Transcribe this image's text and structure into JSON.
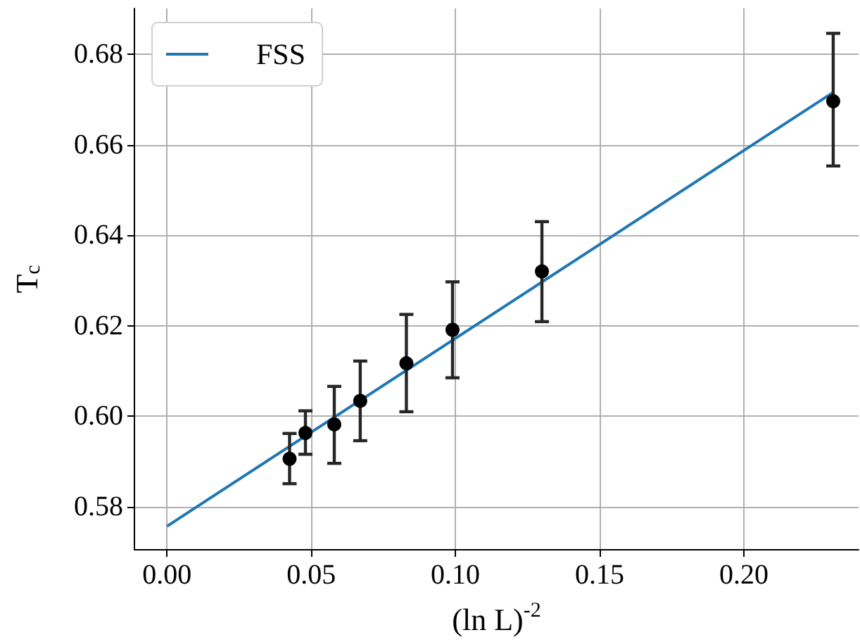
{
  "chart_data": {
    "type": "scatter",
    "xlabel": "(ln L)$^{-2}$",
    "ylabel": "T$_{c}$",
    "xlim": [
      -0.0113,
      0.2398
    ],
    "ylim": [
      0.5705,
      0.6901
    ],
    "xticks": [
      {
        "value": 0,
        "label": "0.00"
      },
      {
        "value": 0.05,
        "label": "0.05"
      },
      {
        "value": 0.1,
        "label": "0.10"
      },
      {
        "value": 0.15,
        "label": "0.15"
      },
      {
        "value": 0.2,
        "label": "0.20"
      }
    ],
    "yticks": [
      {
        "value": 0.58,
        "label": "0.58"
      },
      {
        "value": 0.6,
        "label": "0.60"
      },
      {
        "value": 0.62,
        "label": "0.62"
      },
      {
        "value": 0.64,
        "label": "0.64"
      },
      {
        "value": 0.66,
        "label": "0.66"
      },
      {
        "value": 0.68,
        "label": "0.68"
      }
    ],
    "grid": true,
    "legend": "top left",
    "marker": "circle",
    "series": [
      {
        "type": "scatter",
        "color": "#000000",
        "x": [
          0.0425,
          0.048,
          0.058,
          0.067,
          0.083,
          0.099,
          0.13,
          0.231
        ],
        "values": [
          0.5906,
          0.5963,
          0.5982,
          0.6034,
          0.6117,
          0.6191,
          0.632,
          0.6696
        ],
        "errors": [
          [
            0.5851,
            0.5962
          ],
          [
            0.5916,
            0.6012
          ],
          [
            0.5896,
            0.6066
          ],
          [
            0.5946,
            0.6122
          ],
          [
            0.601,
            0.6225
          ],
          [
            0.6085,
            0.6297
          ],
          [
            0.6209,
            0.643
          ],
          [
            0.6553,
            0.6846
          ]
        ]
      },
      {
        "type": "line",
        "name": "FSS",
        "color": "#1f77b4",
        "x": [
          0,
          0.2313
        ],
        "values": [
          0.5757,
          0.6717
        ],
        "marker": "none",
        "line_style": "solid"
      }
    ]
  }
}
